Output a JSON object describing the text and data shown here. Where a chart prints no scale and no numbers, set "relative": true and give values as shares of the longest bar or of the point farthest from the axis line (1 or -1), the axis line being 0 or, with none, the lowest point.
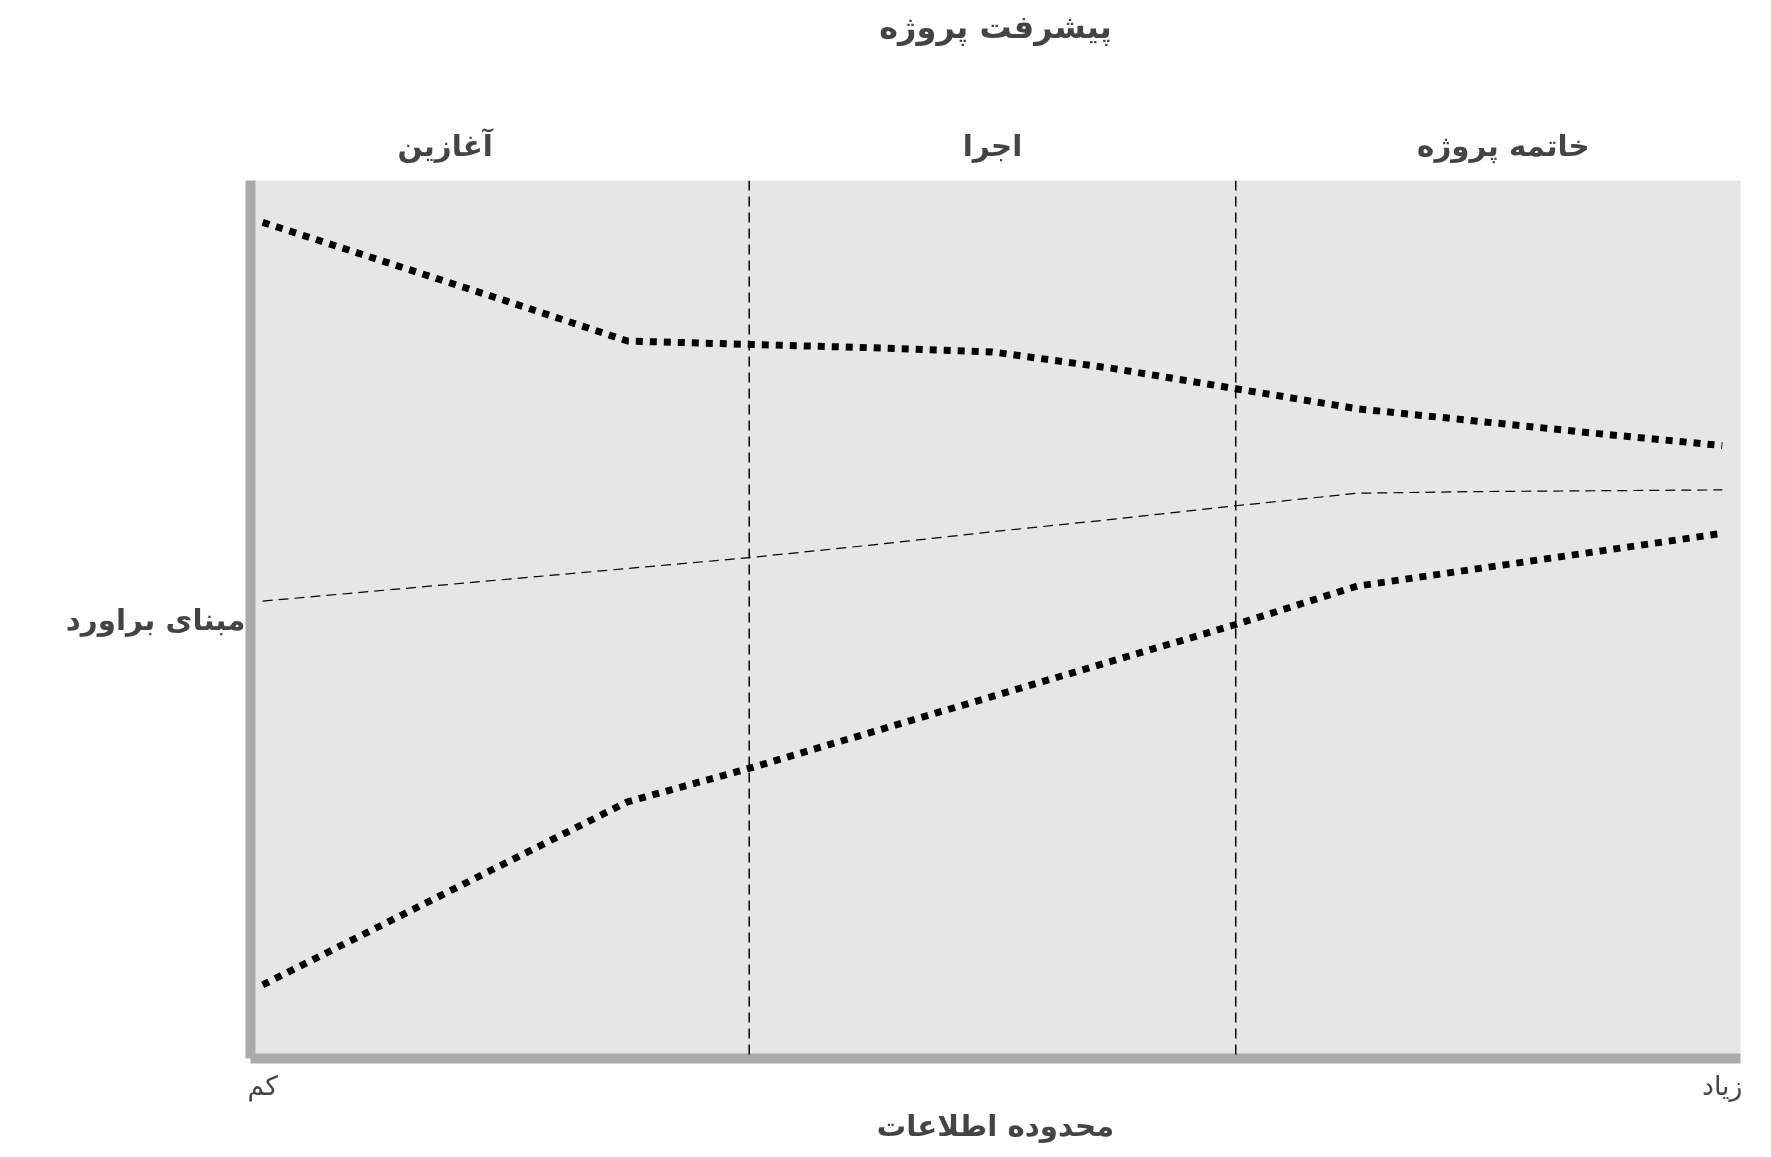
{
  "chart_data": {
    "type": "line",
    "relative": true,
    "title": "پیشرفت پروژه",
    "xlabel": "محدوده اطلاعات",
    "ylabel": "مبنای براورد",
    "categories": [
      null,
      null,
      null,
      null,
      null,
      null,
      null,
      null,
      null,
      null,
      null,
      null,
      null
    ],
    "series": [
      {
        "color": "#000000",
        "line_style": "dotted",
        "values": [
          1.0,
          0.953,
          0.906,
          0.858,
          0.854,
          0.85,
          0.845,
          0.825,
          0.801,
          0.777,
          0.762,
          0.747,
          0.733
        ]
      },
      {
        "color": "#000000",
        "line_style": "dashed",
        "values": [
          0.547,
          0.56,
          0.573,
          0.586,
          0.599,
          0.614,
          0.63,
          0.645,
          0.661,
          0.676,
          0.678,
          0.679,
          0.68
        ]
      },
      {
        "color": "#000000",
        "line_style": "dotted",
        "values": [
          0.088,
          0.161,
          0.234,
          0.307,
          0.347,
          0.39,
          0.433,
          0.476,
          0.519,
          0.565,
          0.586,
          0.607,
          0.628
        ]
      }
    ],
    "annotations": [
      "آغازین",
      "اجرا",
      "خاتمه پروژه",
      "کم",
      "زیاد"
    ],
    "marker": "none"
  }
}
